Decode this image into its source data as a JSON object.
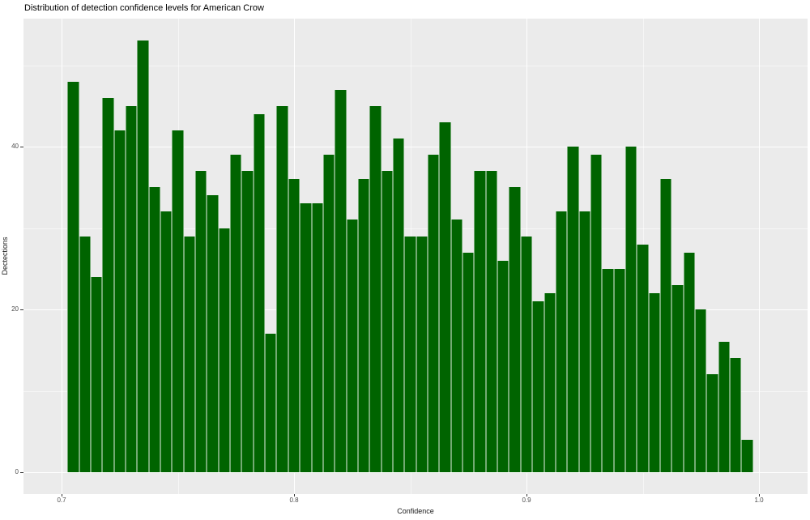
{
  "chart_data": {
    "type": "bar",
    "chart_kind": "histogram",
    "title": "Distribution of detection confidence levels for American Crow",
    "xlabel": "Confidence",
    "ylabel": "Dectections",
    "legend": "none",
    "grid": "on",
    "bin_width": 0.005,
    "bin_centers": [
      0.705,
      0.71,
      0.715,
      0.72,
      0.725,
      0.73,
      0.735,
      0.74,
      0.745,
      0.75,
      0.755,
      0.76,
      0.765,
      0.77,
      0.775,
      0.78,
      0.785,
      0.79,
      0.795,
      0.8,
      0.805,
      0.81,
      0.815,
      0.82,
      0.825,
      0.83,
      0.835,
      0.84,
      0.845,
      0.85,
      0.855,
      0.86,
      0.865,
      0.87,
      0.875,
      0.88,
      0.885,
      0.89,
      0.895,
      0.9,
      0.905,
      0.91,
      0.915,
      0.92,
      0.925,
      0.93,
      0.935,
      0.94,
      0.945,
      0.95,
      0.955,
      0.96,
      0.965,
      0.97,
      0.975,
      0.98,
      0.985,
      0.99,
      0.995
    ],
    "counts": [
      48,
      29,
      24,
      46,
      42,
      45,
      53,
      35,
      32,
      42,
      29,
      37,
      34,
      30,
      39,
      37,
      44,
      17,
      45,
      36,
      33,
      33,
      39,
      47,
      31,
      36,
      45,
      37,
      41,
      29,
      29,
      39,
      43,
      31,
      27,
      37,
      37,
      26,
      35,
      29,
      21,
      22,
      32,
      40,
      32,
      39,
      25,
      25,
      40,
      28,
      22,
      36,
      23,
      27,
      20,
      12,
      16,
      14,
      4
    ],
    "x_ticks": [
      {
        "value": 0.7,
        "label": "0.7"
      },
      {
        "value": 0.8,
        "label": "0.8"
      },
      {
        "value": 0.9,
        "label": "0.9"
      },
      {
        "value": 1.0,
        "label": "1.0"
      }
    ],
    "y_ticks": [
      {
        "value": 0,
        "label": "0"
      },
      {
        "value": 20,
        "label": "20"
      },
      {
        "value": 40,
        "label": "40"
      }
    ],
    "x_minor_ticks": [
      0.75,
      0.85,
      0.95
    ],
    "y_minor_ticks": [
      10,
      30,
      50
    ],
    "xlim": [
      0.684,
      1.021
    ],
    "ylim": [
      -2.7,
      55.7
    ],
    "colors": {
      "bar": "#006400",
      "panel_background": "#ebebeb",
      "gridline": "#ffffff",
      "tick_label": "#4d4d4d",
      "title": "#000000",
      "figure_background": "#ffffff"
    }
  }
}
